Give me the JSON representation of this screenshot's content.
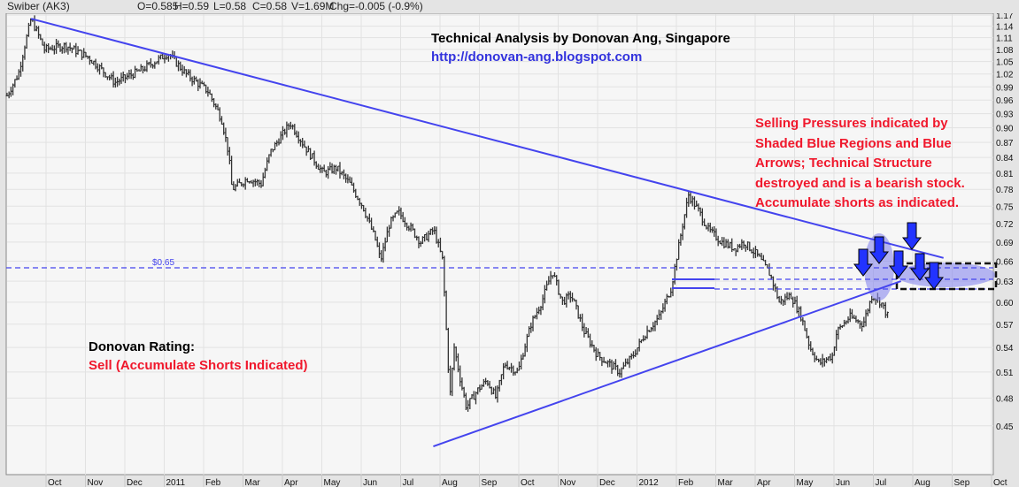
{
  "header": {
    "symbol": "Swiber (AK3)",
    "open": "O=0.585",
    "high": "H=0.59",
    "low": "L=0.58",
    "close": "C=0.58",
    "volume": "V=1.69M",
    "change": "Chg=-0.005 (-0.9%)"
  },
  "annotations": {
    "title": "Technical Analysis by Donovan Ang, Singapore",
    "url": "http://donovan-ang.blogspot.com",
    "note_lines": [
      "Selling Pressures indicated by",
      "Shaded Blue Regions and Blue",
      "Arrows; Technical Structure",
      "destroyed and is a bearish stock.",
      "Accumulate shorts as indicated."
    ],
    "rating_label": "Donovan Rating:",
    "rating_value": "Sell (Accumulate Shorts Indicated)",
    "level_label": "$0.65"
  },
  "colors": {
    "price": "#333333",
    "trend": "#4444ee",
    "note": "#f0182c",
    "url": "#3333dd",
    "shade": "#8888ee"
  },
  "chart_data": {
    "type": "ohlc",
    "scale": "log",
    "ylim": [
      0.42,
      1.17
    ],
    "y_ticks": [
      "1.17",
      "1.14",
      "1.11",
      "1.08",
      "1.05",
      "1.02",
      "0.99",
      "0.96",
      "0.93",
      "0.90",
      "0.87",
      "0.84",
      "0.81",
      "0.78",
      "0.75",
      "0.72",
      "0.69",
      "0.66",
      "0.63",
      "0.60",
      "0.57",
      "0.54",
      "0.51",
      "0.48",
      "0.45"
    ],
    "x_unit": "months since Oct 2010",
    "x_ticks": [
      "Oct",
      "Nov",
      "Dec",
      "2011",
      "Feb",
      "Mar",
      "Apr",
      "May",
      "Jun",
      "Jul",
      "Aug",
      "Sep",
      "Oct",
      "Nov",
      "Dec",
      "2012",
      "Feb",
      "Mar",
      "Apr",
      "May",
      "Jun",
      "Jul",
      "Aug",
      "Sep",
      "Oct"
    ],
    "price_path": [
      [
        -0.99,
        0.97
      ],
      [
        -0.7,
        1.02
      ],
      [
        -0.38,
        1.16
      ],
      [
        -0.04,
        1.08
      ],
      [
        0.5,
        1.09
      ],
      [
        1.08,
        1.06
      ],
      [
        1.75,
        1.0
      ],
      [
        2.43,
        1.03
      ],
      [
        3.1,
        1.07
      ],
      [
        3.55,
        1.02
      ],
      [
        4.11,
        0.98
      ],
      [
        4.45,
        0.92
      ],
      [
        4.63,
        0.85
      ],
      [
        4.72,
        0.78
      ],
      [
        5.12,
        0.8
      ],
      [
        5.46,
        0.79
      ],
      [
        5.69,
        0.85
      ],
      [
        6.2,
        0.91
      ],
      [
        6.58,
        0.86
      ],
      [
        7.03,
        0.81
      ],
      [
        7.37,
        0.82
      ],
      [
        7.71,
        0.79
      ],
      [
        8.04,
        0.75
      ],
      [
        8.38,
        0.69
      ],
      [
        8.49,
        0.66
      ],
      [
        8.72,
        0.72
      ],
      [
        8.94,
        0.74
      ],
      [
        9.51,
        0.69
      ],
      [
        9.84,
        0.71
      ],
      [
        10.07,
        0.66
      ],
      [
        10.13,
        0.59
      ],
      [
        10.25,
        0.48
      ],
      [
        10.36,
        0.54
      ],
      [
        10.52,
        0.5
      ],
      [
        10.67,
        0.47
      ],
      [
        10.97,
        0.49
      ],
      [
        11.19,
        0.5
      ],
      [
        11.42,
        0.48
      ],
      [
        11.64,
        0.52
      ],
      [
        11.98,
        0.51
      ],
      [
        12.31,
        0.57
      ],
      [
        12.58,
        0.6
      ],
      [
        12.85,
        0.645
      ],
      [
        13.1,
        0.6
      ],
      [
        13.33,
        0.61
      ],
      [
        13.66,
        0.56
      ],
      [
        14.0,
        0.53
      ],
      [
        14.56,
        0.51
      ],
      [
        14.9,
        0.53
      ],
      [
        15.24,
        0.56
      ],
      [
        15.57,
        0.58
      ],
      [
        15.87,
        0.62
      ],
      [
        16.02,
        0.67
      ],
      [
        16.31,
        0.77
      ],
      [
        16.58,
        0.74
      ],
      [
        16.81,
        0.71
      ],
      [
        17.15,
        0.69
      ],
      [
        17.48,
        0.68
      ],
      [
        17.71,
        0.69
      ],
      [
        18.04,
        0.67
      ],
      [
        18.38,
        0.64
      ],
      [
        18.61,
        0.6
      ],
      [
        18.9,
        0.61
      ],
      [
        19.17,
        0.58
      ],
      [
        19.39,
        0.54
      ],
      [
        19.62,
        0.52
      ],
      [
        19.96,
        0.53
      ],
      [
        20.07,
        0.56
      ],
      [
        20.4,
        0.58
      ],
      [
        20.74,
        0.57
      ],
      [
        20.97,
        0.61
      ],
      [
        21.19,
        0.6
      ],
      [
        21.37,
        0.58
      ]
    ],
    "trendlines": [
      {
        "name": "downtrend-resistance",
        "from": [
          -0.38,
          1.16
        ],
        "to": [
          22.78,
          0.665
        ]
      },
      {
        "name": "uptrend-support",
        "from": [
          9.83,
          0.429
        ],
        "to": [
          21.7,
          0.63
        ]
      }
    ],
    "horizontal_levels": [
      0.65,
      0.635,
      0.625
    ]
  }
}
